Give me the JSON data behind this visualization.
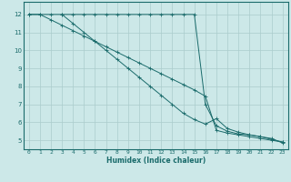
{
  "xlabel": "Humidex (Indice chaleur)",
  "ylabel": "",
  "xlim": [
    -0.5,
    23.5
  ],
  "ylim": [
    4.5,
    12.7
  ],
  "xticks": [
    0,
    1,
    2,
    3,
    4,
    5,
    6,
    7,
    8,
    9,
    10,
    11,
    12,
    13,
    14,
    15,
    16,
    17,
    18,
    19,
    20,
    21,
    22,
    23
  ],
  "yticks": [
    5,
    6,
    7,
    8,
    9,
    10,
    11,
    12
  ],
  "bg_color": "#cce8e8",
  "grid_color": "#aacccc",
  "grid_minor_color": "#bbdddd",
  "line_color": "#1a6b6b",
  "line1_x": [
    0,
    1,
    2,
    3,
    4,
    5,
    6,
    7,
    8,
    9,
    10,
    11,
    12,
    13,
    14,
    15,
    16,
    17,
    18,
    19,
    20,
    21,
    22,
    23
  ],
  "line1_y": [
    12,
    12,
    12,
    12,
    12,
    12,
    12,
    12,
    12,
    12,
    12,
    12,
    12,
    12,
    12,
    12,
    7.0,
    5.8,
    5.5,
    5.35,
    5.3,
    5.2,
    5.05,
    4.9
  ],
  "line2_x": [
    0,
    1,
    2,
    3,
    4,
    5,
    6,
    7,
    8,
    9,
    10,
    11,
    12,
    13,
    14,
    15,
    16,
    17,
    18,
    19,
    20,
    21,
    22,
    23
  ],
  "line2_y": [
    12,
    12,
    11.7,
    11.4,
    11.1,
    10.8,
    10.5,
    10.2,
    9.9,
    9.6,
    9.3,
    9.0,
    8.7,
    8.4,
    8.1,
    7.8,
    7.45,
    5.55,
    5.4,
    5.3,
    5.2,
    5.1,
    5.0,
    4.9
  ],
  "line3_x": [
    3,
    4,
    5,
    6,
    7,
    8,
    9,
    10,
    11,
    12,
    13,
    14,
    15,
    16,
    17,
    18,
    19,
    20,
    21,
    22,
    23
  ],
  "line3_y": [
    12,
    11.5,
    11.0,
    10.5,
    10.0,
    9.5,
    9.0,
    8.5,
    8.0,
    7.5,
    7.0,
    6.5,
    6.15,
    5.9,
    6.2,
    5.65,
    5.45,
    5.3,
    5.2,
    5.1,
    4.85
  ]
}
